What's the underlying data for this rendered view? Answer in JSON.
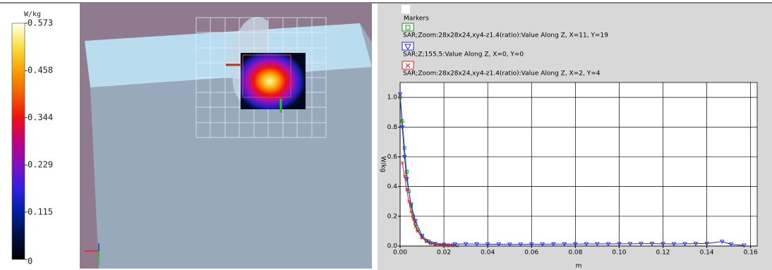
{
  "colorbar": {
    "unit": "W/kg",
    "lim": [
      0,
      0.573
    ],
    "ticks": [
      0,
      0.115,
      0.229,
      0.344,
      0.458,
      0.573
    ]
  },
  "chart_data": {
    "type": "line",
    "legend_title": "Markers",
    "xlabel": "m",
    "ylabel": "W/kg",
    "xlim": [
      0,
      0.163
    ],
    "ylim": [
      0,
      1.1
    ],
    "xticks": [
      {
        "value": 0,
        "label": "0.00"
      },
      0.02,
      0.04,
      0.06,
      0.08,
      {
        "value": 0.1,
        "label": "0.10"
      },
      0.12,
      0.14,
      0.16
    ],
    "yticks": [
      {
        "value": 0,
        "label": "0.0"
      },
      0.2,
      0.4,
      0.6,
      0.8,
      {
        "value": 1,
        "label": "1.0"
      }
    ],
    "grid": true,
    "series": [
      {
        "name": "SAR;Zoom:28x28x24,xy4-z1.4(ratio):Value Along Z, X=11, Y=19",
        "color": "#1c8c1c",
        "marker": "square",
        "x": [
          0,
          0.001,
          0.002,
          0.003,
          0.004,
          0.005,
          0.006,
          0.007,
          0.008,
          0.01,
          0.012,
          0.014,
          0.016,
          0.018,
          0.02,
          0.022,
          0.024,
          0.026
        ],
        "values": [
          1.0,
          0.84,
          0.66,
          0.5,
          0.37,
          0.27,
          0.2,
          0.15,
          0.11,
          0.06,
          0.035,
          0.02,
          0.012,
          0.008,
          0.006,
          0.005,
          0.005,
          0.005
        ]
      },
      {
        "name": "SAR;Z;155,5:Value Along Z, X=0, Y=0",
        "color": "#2323d2",
        "marker": "triangle",
        "x": [
          0,
          0.001,
          0.002,
          0.003,
          0.005,
          0.007,
          0.01,
          0.013,
          0.016,
          0.02,
          0.025,
          0.03,
          0.035,
          0.04,
          0.045,
          0.05,
          0.055,
          0.06,
          0.065,
          0.07,
          0.075,
          0.08,
          0.085,
          0.09,
          0.095,
          0.1,
          0.105,
          0.11,
          0.115,
          0.12,
          0.125,
          0.13,
          0.135,
          0.14,
          0.147,
          0.151,
          0.157
        ],
        "values": [
          1.02,
          0.8,
          0.6,
          0.45,
          0.28,
          0.17,
          0.07,
          0.03,
          0.015,
          0.01,
          0.013,
          0.014,
          0.013,
          0.012,
          0.012,
          0.011,
          0.011,
          0.012,
          0.012,
          0.013,
          0.013,
          0.013,
          0.014,
          0.014,
          0.014,
          0.015,
          0.015,
          0.016,
          0.016,
          0.015,
          0.014,
          0.015,
          0.016,
          0.017,
          0.03,
          0.012,
          0.005
        ]
      },
      {
        "name": "SAR;Zoom:28x28x24,xy4-z1.4(ratio):Value Along Z, X=2, Y=4",
        "color": "#e02020",
        "marker": "x",
        "x": [
          0.001,
          0.002,
          0.003,
          0.004,
          0.005,
          0.006,
          0.007,
          0.008,
          0.01,
          0.012,
          0.014,
          0.016,
          0.018,
          0.02,
          0.022,
          0.024
        ],
        "values": [
          0.56,
          0.47,
          0.38,
          0.3,
          0.23,
          0.18,
          0.13,
          0.1,
          0.055,
          0.03,
          0.018,
          0.011,
          0.007,
          0.005,
          0.004,
          0.004
        ]
      }
    ]
  }
}
